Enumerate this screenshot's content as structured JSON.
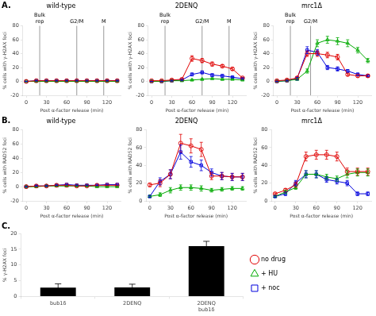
{
  "chart_data": [
    {
      "type": "line",
      "title": "wild-type",
      "xlabel": "Post α-factor release (min)",
      "ylabel": "% cells with γ-H2AX foci",
      "x": [
        0,
        15,
        30,
        45,
        60,
        75,
        90,
        105,
        120,
        135
      ],
      "xlim": [
        -5,
        140
      ],
      "xticks": [
        0,
        30,
        60,
        90,
        120
      ],
      "ylim": [
        -20,
        80
      ],
      "yticks": [
        -20,
        0,
        20,
        40,
        60,
        80
      ],
      "grid": false,
      "series": [
        {
          "name": "no drug",
          "color": "#e00000",
          "marker": "circle",
          "values": [
            0,
            1,
            1,
            1,
            1,
            1,
            1,
            1,
            1,
            1
          ],
          "errors": [
            0,
            0.5,
            0.5,
            0.5,
            0.5,
            0.5,
            0.5,
            0.5,
            0.5,
            0.5
          ]
        },
        {
          "name": "+ HU",
          "color": "#00aa00",
          "marker": "triangle",
          "values": [
            0,
            0,
            0,
            0,
            0,
            0,
            0,
            0,
            0,
            0
          ],
          "errors": [
            0,
            0.2,
            0.2,
            0.2,
            0.2,
            0.2,
            0.2,
            0.2,
            0.2,
            0.2
          ]
        },
        {
          "name": "+ noc",
          "color": "#0000dd",
          "marker": "square",
          "values": [
            0,
            1,
            1,
            1,
            1,
            1,
            1,
            1,
            1,
            1
          ],
          "errors": [
            0,
            0.5,
            0.5,
            0.5,
            0.5,
            0.5,
            0.5,
            0.5,
            0.5,
            0.5
          ]
        }
      ],
      "annotations": [
        {
          "text": "A."
        },
        {
          "x": 20,
          "text": "Bulk\nrep"
        },
        {
          "x": 75,
          "text": "G2/M"
        },
        {
          "x": 115,
          "text": "M"
        }
      ]
    },
    {
      "type": "line",
      "title": "2DENQ",
      "xlabel": "Post α-factor release (min)",
      "ylabel": "% cells with γ-H2AX foci",
      "x": [
        0,
        15,
        30,
        45,
        60,
        75,
        90,
        105,
        120,
        135
      ],
      "xlim": [
        -5,
        140
      ],
      "xticks": [
        0,
        30,
        60,
        90,
        120
      ],
      "ylim": [
        -20,
        80
      ],
      "yticks": [
        -20,
        0,
        20,
        40,
        60,
        80
      ],
      "grid": false,
      "series": [
        {
          "name": "no drug",
          "color": "#e00000",
          "marker": "circle",
          "values": [
            1,
            1,
            2,
            3,
            33,
            30,
            25,
            22,
            18,
            5
          ],
          "errors": [
            0,
            0.5,
            1,
            1,
            4,
            3,
            3,
            2,
            2,
            1
          ]
        },
        {
          "name": "+ HU",
          "color": "#00aa00",
          "marker": "triangle",
          "values": [
            0,
            0,
            1,
            1,
            2,
            3,
            4,
            3,
            3,
            2
          ],
          "errors": [
            0,
            0.2,
            0.5,
            0.5,
            1,
            1,
            1,
            1,
            0.5,
            0.5
          ]
        },
        {
          "name": "+ noc",
          "color": "#0000dd",
          "marker": "square",
          "values": [
            0,
            0,
            1,
            2,
            10,
            13,
            9,
            8,
            6,
            4
          ],
          "errors": [
            0,
            0.2,
            0.5,
            1,
            2,
            2,
            2,
            2,
            1,
            1
          ]
        }
      ],
      "annotations": [
        {
          "x": 20,
          "text": "Bulk\nrep"
        },
        {
          "x": 75,
          "text": "G2/M"
        },
        {
          "x": 115,
          "text": "M"
        }
      ]
    },
    {
      "type": "line",
      "title": "mrc1Δ",
      "xlabel": "Post α-factor release (min)",
      "ylabel": "% cells with γ-H2AX foci",
      "x": [
        0,
        15,
        30,
        45,
        60,
        75,
        90,
        105,
        120,
        135
      ],
      "xlim": [
        -5,
        140
      ],
      "xticks": [
        0,
        30,
        60,
        90,
        120
      ],
      "ylim": [
        -20,
        80
      ],
      "yticks": [
        -20,
        0,
        20,
        40,
        60,
        80
      ],
      "grid": false,
      "series": [
        {
          "name": "no drug",
          "color": "#e00000",
          "marker": "circle",
          "values": [
            1,
            2,
            5,
            40,
            40,
            38,
            35,
            10,
            8,
            8
          ],
          "errors": [
            0.5,
            1,
            2,
            4,
            4,
            4,
            4,
            2,
            2,
            2
          ]
        },
        {
          "name": "+ HU",
          "color": "#00aa00",
          "marker": "triangle",
          "values": [
            0,
            1,
            3,
            15,
            55,
            60,
            58,
            55,
            45,
            30
          ],
          "errors": [
            0.2,
            0.5,
            1,
            3,
            5,
            5,
            5,
            5,
            4,
            3
          ]
        },
        {
          "name": "+ noc",
          "color": "#0000dd",
          "marker": "square",
          "values": [
            0,
            1,
            4,
            45,
            42,
            20,
            18,
            15,
            10,
            8
          ],
          "errors": [
            0.2,
            0.5,
            2,
            5,
            4,
            3,
            3,
            2,
            2,
            1
          ]
        }
      ],
      "annotations": [
        {
          "x": 20,
          "text": "Bulk\nrep"
        },
        {
          "x": 50,
          "text": "G2/M"
        }
      ]
    },
    {
      "type": "line",
      "title": "wild-type",
      "xlabel": "Post α-factor release (min)",
      "ylabel": "% cells with RAD52 foci",
      "x": [
        0,
        15,
        30,
        45,
        60,
        75,
        90,
        105,
        120,
        135
      ],
      "xlim": [
        -5,
        140
      ],
      "xticks": [
        0,
        30,
        60,
        90,
        120
      ],
      "ylim": [
        -20,
        80
      ],
      "yticks": [
        -20,
        0,
        20,
        40,
        60,
        80
      ],
      "grid": false,
      "series": [
        {
          "name": "no drug",
          "color": "#e00000",
          "marker": "circle",
          "values": [
            0,
            1,
            1,
            2,
            2,
            1,
            1,
            2,
            2,
            2
          ],
          "errors": [
            0,
            0.5,
            0.5,
            0.5,
            0.5,
            0.5,
            0.5,
            0.5,
            0.5,
            0.5
          ]
        },
        {
          "name": "+ HU",
          "color": "#00aa00",
          "marker": "triangle",
          "values": [
            0,
            0,
            1,
            1,
            1,
            1,
            1,
            0,
            0,
            0
          ],
          "errors": [
            0,
            0.2,
            0.3,
            0.3,
            0.3,
            0.3,
            0.3,
            0.2,
            0.2,
            0.2
          ]
        },
        {
          "name": "+ noc",
          "color": "#0000dd",
          "marker": "square",
          "values": [
            0,
            1,
            1,
            2,
            3,
            2,
            2,
            2,
            3,
            3
          ],
          "errors": [
            0,
            0.5,
            0.5,
            0.5,
            0.5,
            0.5,
            0.5,
            0.5,
            0.5,
            0.5
          ]
        }
      ],
      "annotations": [
        {
          "text": "B."
        }
      ]
    },
    {
      "type": "line",
      "title": "2DENQ",
      "xlabel": "Post α-factor release (min)",
      "ylabel": "% cells with RAD52 foci",
      "x": [
        0,
        15,
        30,
        45,
        60,
        75,
        90,
        105,
        120,
        135
      ],
      "xlim": [
        -5,
        140
      ],
      "xticks": [
        0,
        30,
        60,
        90,
        120
      ],
      "ylim": [
        0,
        80
      ],
      "yticks": [
        0,
        20,
        40,
        60,
        80
      ],
      "grid": false,
      "series": [
        {
          "name": "no drug",
          "color": "#e00000",
          "marker": "circle",
          "values": [
            18,
            20,
            30,
            65,
            62,
            58,
            28,
            28,
            27,
            27
          ],
          "errors": [
            2,
            4,
            5,
            10,
            8,
            8,
            4,
            4,
            4,
            4
          ]
        },
        {
          "name": "+ HU",
          "color": "#00aa00",
          "marker": "triangle",
          "values": [
            5,
            7,
            12,
            15,
            15,
            14,
            12,
            13,
            14,
            14
          ],
          "errors": [
            1,
            2,
            3,
            3,
            3,
            3,
            2,
            2,
            2,
            2
          ]
        },
        {
          "name": "+ noc",
          "color": "#0000dd",
          "marker": "square",
          "values": [
            5,
            22,
            30,
            55,
            44,
            40,
            32,
            28,
            27,
            27
          ],
          "errors": [
            1,
            4,
            5,
            8,
            6,
            6,
            4,
            4,
            4,
            4
          ]
        }
      ]
    },
    {
      "type": "line",
      "title": "mrc1Δ",
      "xlabel": "Post α-factor release (min)",
      "ylabel": "% cells with RAD52 foci",
      "x": [
        0,
        15,
        30,
        45,
        60,
        75,
        90,
        105,
        120,
        135
      ],
      "xlim": [
        -5,
        140
      ],
      "xticks": [
        0,
        30,
        60,
        90,
        120
      ],
      "ylim": [
        0,
        80
      ],
      "yticks": [
        0,
        20,
        40,
        60,
        80
      ],
      "grid": false,
      "series": [
        {
          "name": "no drug",
          "color": "#e00000",
          "marker": "circle",
          "values": [
            8,
            12,
            18,
            50,
            52,
            52,
            50,
            33,
            33,
            33
          ],
          "errors": [
            1,
            2,
            3,
            5,
            5,
            5,
            5,
            4,
            4,
            4
          ]
        },
        {
          "name": "+ HU",
          "color": "#00aa00",
          "marker": "triangle",
          "values": [
            5,
            10,
            15,
            30,
            30,
            27,
            25,
            30,
            32,
            32
          ],
          "errors": [
            1,
            2,
            2,
            4,
            4,
            3,
            3,
            4,
            4,
            4
          ]
        },
        {
          "name": "+ noc",
          "color": "#0000dd",
          "marker": "square",
          "values": [
            5,
            8,
            20,
            30,
            30,
            24,
            22,
            20,
            8,
            8
          ],
          "errors": [
            1,
            2,
            3,
            4,
            4,
            3,
            3,
            3,
            2,
            2
          ]
        }
      ]
    },
    {
      "type": "bar",
      "ylabel": "% γ-H2AX foci",
      "categories": [
        "bub1δ",
        "2DENQ",
        "2DENQ\nbub1δ"
      ],
      "values": [
        2.8,
        2.9,
        16.0
      ],
      "errors": [
        1.2,
        1.0,
        1.5
      ],
      "color": "black",
      "ylim": [
        0,
        20
      ],
      "yticks": [
        0,
        5,
        10,
        15,
        20
      ],
      "grid": false,
      "legend": "right",
      "annotations": [
        {
          "text": "C."
        }
      ]
    }
  ]
}
